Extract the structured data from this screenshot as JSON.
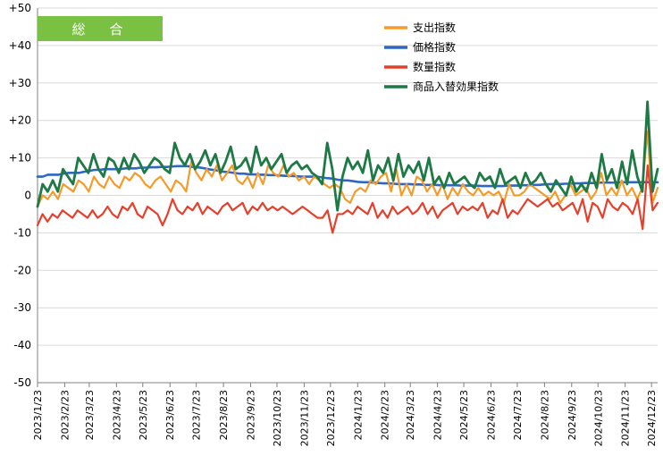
{
  "chart_data": {
    "type": "line",
    "badge": "総　合",
    "badge_color": "#7AC143",
    "ylim": [
      -50,
      50
    ],
    "yticks": [
      50,
      40,
      30,
      20,
      10,
      0,
      -10,
      -20,
      -30,
      -40,
      -50
    ],
    "ytick_labels": [
      "+50",
      "+40",
      "+30",
      "+20",
      "+10",
      "0",
      "-10",
      "-20",
      "-30",
      "-40",
      "-50"
    ],
    "x_start": "2023-01-23",
    "x_end": "2024-12-30",
    "xtick_labels": [
      "2023/1/23",
      "2023/2/23",
      "2023/3/23",
      "2023/4/23",
      "2023/5/23",
      "2023/6/23",
      "2023/7/23",
      "2023/8/23",
      "2023/9/23",
      "2023/10/23",
      "2023/11/23",
      "2023/12/23",
      "2024/1/23",
      "2024/2/23",
      "2024/3/23",
      "2024/4/23",
      "2024/5/23",
      "2024/6/23",
      "2024/7/23",
      "2024/8/23",
      "2024/9/23",
      "2024/10/23",
      "2024/11/23",
      "2024/12/23"
    ],
    "xtick_dates": [
      "2023-01-23",
      "2023-02-23",
      "2023-03-23",
      "2023-04-23",
      "2023-05-23",
      "2023-06-23",
      "2023-07-23",
      "2023-08-23",
      "2023-09-23",
      "2023-10-23",
      "2023-11-23",
      "2023-12-23",
      "2024-01-23",
      "2024-02-23",
      "2024-03-23",
      "2024-04-23",
      "2024-05-23",
      "2024-06-23",
      "2024-07-23",
      "2024-08-23",
      "2024-09-23",
      "2024-10-23",
      "2024-11-23",
      "2024-12-23"
    ],
    "legend_position": "top-right",
    "series": [
      {
        "name": "支出指数",
        "color": "#F39B2B",
        "width": 2.2,
        "values": [
          -3,
          0,
          -1,
          1,
          -1,
          3,
          2,
          1,
          4,
          3,
          1,
          5,
          3,
          2,
          5,
          3,
          2,
          5,
          4,
          6,
          5,
          3,
          2,
          4,
          5,
          3,
          1,
          4,
          3,
          1,
          9,
          6,
          4,
          7,
          5,
          8,
          4,
          6,
          8,
          4,
          3,
          5,
          2,
          6,
          3,
          8,
          6,
          5,
          8,
          5,
          6,
          4,
          5,
          3,
          5,
          4,
          3,
          2,
          3,
          2,
          -1,
          -2,
          1,
          2,
          1,
          4,
          3,
          5,
          6,
          1,
          7,
          0,
          3,
          0,
          5,
          4,
          1,
          3,
          0,
          3,
          -1,
          2,
          0,
          3,
          1,
          0,
          2,
          0,
          1,
          0,
          1,
          -2,
          3,
          0,
          0,
          1,
          3,
          2,
          1,
          0,
          -1,
          1,
          -2,
          0,
          3,
          0,
          1,
          2,
          -1,
          1,
          6,
          0,
          2,
          0,
          4,
          0,
          2,
          -1,
          2,
          17,
          -2,
          2
        ]
      },
      {
        "name": "価格指数",
        "color": "#2E66C4",
        "width": 2.6,
        "values": [
          5,
          5,
          5.5,
          5.5,
          5.5,
          5.8,
          6,
          6,
          6,
          6.3,
          6.5,
          6.8,
          6.8,
          7,
          7,
          7,
          7,
          7.2,
          7.2,
          7.2,
          7.4,
          7.4,
          7.5,
          7.5,
          7.6,
          7.6,
          7.7,
          7.8,
          7.8,
          7.8,
          7.6,
          7.5,
          7.3,
          7,
          6.8,
          6.6,
          6.3,
          6.2,
          6,
          5.8,
          5.8,
          5.6,
          5.6,
          5.5,
          5.5,
          5.4,
          5.4,
          5.3,
          5.2,
          5.2,
          5.1,
          5,
          5,
          5,
          5,
          4.8,
          4.6,
          4.5,
          4.2,
          4,
          4,
          3.8,
          3.6,
          3.5,
          3.5,
          3.4,
          3.3,
          3.2,
          3.2,
          3.1,
          3,
          3,
          3,
          2.9,
          2.9,
          2.8,
          2.8,
          2.8,
          2.7,
          2.7,
          2.7,
          2.7,
          2.6,
          2.6,
          2.6,
          2.6,
          2.5,
          2.5,
          2.5,
          2.5,
          2.5,
          2.6,
          2.6,
          2.6,
          2.7,
          2.7,
          2.8,
          2.8,
          2.9,
          3,
          3,
          3,
          3.1,
          3.1,
          3.2,
          3.2,
          3.3,
          3.3,
          3.3,
          3.4,
          3.4,
          3.4,
          3.4,
          3.5,
          3.5,
          3.5,
          3.5,
          3.5,
          3.5,
          3.5,
          3.5
        ]
      },
      {
        "name": "数量指数",
        "color": "#E5402C",
        "width": 2.2,
        "values": [
          -8,
          -5,
          -7,
          -5,
          -6,
          -4,
          -5,
          -6,
          -4,
          -5,
          -6,
          -4,
          -6,
          -5,
          -3,
          -5,
          -6,
          -3,
          -4,
          -2,
          -5,
          -6,
          -3,
          -4,
          -5,
          -8,
          -5,
          -1,
          -4,
          -5,
          -3,
          -4,
          -2,
          -5,
          -3,
          -4,
          -5,
          -3,
          -2,
          -4,
          -3,
          -2,
          -5,
          -3,
          -4,
          -2,
          -4,
          -3,
          -4,
          -3,
          -4,
          -5,
          -4,
          -3,
          -4,
          -5,
          -6,
          -6,
          -4,
          -10,
          -5,
          -5,
          -4,
          -5,
          -3,
          -4,
          -5,
          -2,
          -6,
          -4,
          -6,
          -3,
          -5,
          -4,
          -3,
          -5,
          -4,
          -2,
          -5,
          -3,
          -6,
          -4,
          -3,
          -2,
          -5,
          -3,
          -4,
          -3,
          -4,
          -2,
          -6,
          -4,
          -5,
          -1,
          -6,
          -4,
          -5,
          -3,
          -1,
          -2,
          -3,
          -2,
          -1,
          -3,
          -2,
          -4,
          -3,
          -2,
          -5,
          -1,
          -7,
          -2,
          -3,
          -6,
          -1,
          -3,
          -4,
          -2,
          -3,
          -5,
          -1,
          -9,
          8,
          -4,
          -2
        ]
      },
      {
        "name": "商品入替効果指数",
        "color": "#1E7A45",
        "width": 2.8,
        "values": [
          -3,
          3,
          1,
          4,
          1,
          7,
          5,
          3,
          10,
          8,
          6,
          11,
          7,
          5,
          10,
          9,
          6,
          10,
          7,
          11,
          9,
          6,
          8,
          10,
          9,
          7,
          6,
          14,
          10,
          8,
          11,
          7,
          9,
          12,
          8,
          11,
          6,
          9,
          13,
          7,
          8,
          10,
          6,
          13,
          8,
          10,
          7,
          9,
          11,
          6,
          8,
          9,
          7,
          8,
          6,
          5,
          3,
          14,
          7,
          -4,
          5,
          10,
          7,
          9,
          6,
          12,
          4,
          8,
          6,
          10,
          4,
          11,
          5,
          8,
          6,
          9,
          4,
          10,
          3,
          5,
          2,
          6,
          3,
          4,
          5,
          3,
          2,
          6,
          4,
          5,
          2,
          7,
          3,
          4,
          5,
          2,
          6,
          3,
          4,
          6,
          3,
          1,
          4,
          2,
          0,
          5,
          1,
          3,
          1,
          6,
          2,
          11,
          4,
          7,
          2,
          9,
          3,
          12,
          5,
          1,
          25,
          1,
          7
        ]
      }
    ]
  }
}
